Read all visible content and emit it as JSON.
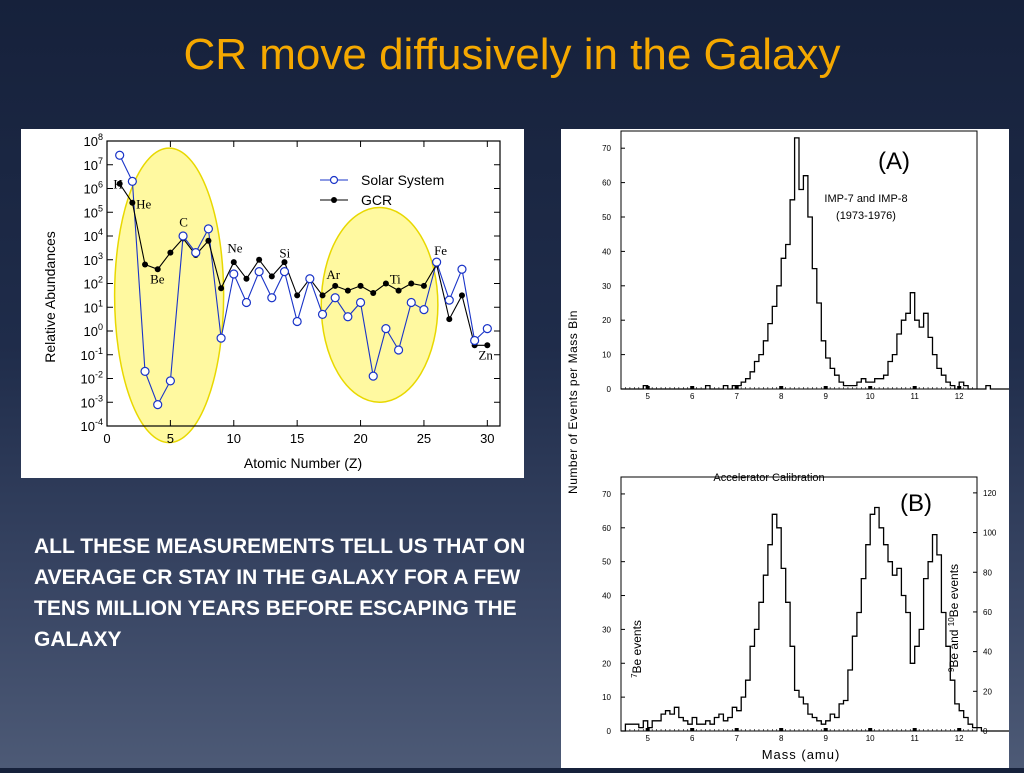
{
  "slide": {
    "title": "CR move diffusively in the Galaxy",
    "body": "ALL THESE MEASUREMENTS TELL US THAT ON AVERAGE CR STAY IN THE GALAXY FOR A FEW TENS MILLION YEARS BEFORE ESCAPING THE GALAXY"
  },
  "colors": {
    "title": "#f5a800",
    "highlight": "#fff9a0",
    "highlight_stroke": "#e8d800",
    "solar": "#1a34c8",
    "gcr": "#000000"
  },
  "chart_data": [
    {
      "type": "line",
      "xlabel": "Atomic Number (Z)",
      "ylabel": "Relative Abundances",
      "xlim": [
        0,
        31
      ],
      "ylim": [
        -4,
        8
      ],
      "yscale": "log",
      "xticks": [
        0,
        5,
        10,
        15,
        20,
        25,
        30
      ],
      "ytick_exponents": [
        8,
        7,
        6,
        5,
        4,
        3,
        2,
        1,
        0,
        -1,
        -2,
        -3,
        -4
      ],
      "legend": [
        "Solar System",
        "GCR"
      ],
      "legend_position": "top-right",
      "series": [
        {
          "name": "Solar System",
          "marker": "open-circle",
          "x": [
            1,
            2,
            3,
            4,
            5,
            6,
            7,
            8,
            9,
            10,
            11,
            12,
            13,
            14,
            15,
            16,
            17,
            18,
            19,
            20,
            21,
            22,
            23,
            24,
            25,
            26,
            27,
            28,
            29,
            30
          ],
          "y_log": [
            7.4,
            6.3,
            -1.7,
            -3.1,
            -2.1,
            4.0,
            3.3,
            4.3,
            -0.3,
            2.4,
            1.2,
            2.5,
            1.4,
            2.5,
            0.4,
            2.2,
            0.7,
            1.4,
            0.6,
            1.2,
            -1.9,
            0.1,
            -0.8,
            1.2,
            0.9,
            2.9,
            1.3,
            2.6,
            -0.4,
            0.1
          ]
        },
        {
          "name": "GCR",
          "marker": "filled-circle",
          "x": [
            1,
            2,
            3,
            4,
            5,
            6,
            7,
            8,
            9,
            10,
            11,
            12,
            13,
            14,
            15,
            16,
            17,
            18,
            19,
            20,
            21,
            22,
            23,
            24,
            25,
            26,
            27,
            28,
            29,
            30
          ],
          "y_log": [
            6.2,
            5.4,
            2.8,
            2.6,
            3.3,
            3.9,
            3.2,
            3.8,
            1.8,
            2.9,
            2.2,
            3.0,
            2.3,
            2.9,
            1.5,
            2.2,
            1.5,
            1.9,
            1.7,
            1.9,
            1.6,
            2.0,
            1.7,
            2.0,
            1.9,
            2.8,
            0.5,
            1.5,
            -0.6,
            -0.6
          ]
        }
      ],
      "annotations": [
        "H",
        "He",
        "Be",
        "C",
        "Ne",
        "Si",
        "Ar",
        "Ti",
        "Fe",
        "Zn"
      ],
      "highlight_regions": [
        "Li-Be-B",
        "Sc-Ti-V-Cr-Mn"
      ]
    },
    {
      "type": "bar",
      "panel_label": "(A)",
      "annotation": [
        "IMP-7 and IMP-8",
        "(1973-1976)"
      ],
      "xlim": [
        4.4,
        12.4
      ],
      "ylim": [
        0,
        75
      ],
      "xticks": [
        5,
        6,
        7,
        8,
        9,
        10,
        11,
        12
      ],
      "yticks": [
        0,
        10,
        20,
        30,
        40,
        50,
        60,
        70
      ],
      "bin_width": 0.1,
      "bin_start": 4.4,
      "values": [
        0,
        0,
        0,
        0,
        0,
        1,
        0,
        0,
        0,
        0,
        0,
        0,
        0,
        0,
        0,
        0,
        0,
        0,
        0,
        1,
        0,
        0,
        0,
        1,
        0,
        1,
        1,
        2,
        3,
        5,
        8,
        10,
        14,
        19,
        24,
        30,
        38,
        42,
        55,
        73,
        58,
        62,
        50,
        35,
        25,
        14,
        9,
        6,
        4,
        2,
        1,
        1,
        1,
        2,
        3,
        2,
        2,
        3,
        3,
        4,
        8,
        10,
        16,
        20,
        22,
        28,
        20,
        18,
        22,
        15,
        10,
        6,
        4,
        2,
        1,
        0,
        2,
        1,
        0,
        0,
        0,
        0,
        1,
        0,
        0,
        0,
        0,
        0,
        0,
        0,
        0,
        0,
        0,
        0,
        0,
        0,
        0,
        0,
        0,
        0
      ]
    },
    {
      "type": "bar",
      "panel_label": "(B)",
      "title": "Accelerator Calibration",
      "xlabel": "Mass (amu)",
      "ylabel": "Number of Events per Mass Bin",
      "ylabel_left": "7Be events",
      "ylabel_right": "9Be and 10Be events",
      "xlim": [
        4.4,
        12.4
      ],
      "ylim": [
        0,
        75
      ],
      "ylim_right": [
        0,
        128
      ],
      "xticks": [
        5,
        6,
        7,
        8,
        9,
        10,
        11,
        12
      ],
      "yticks": [
        0,
        10,
        20,
        30,
        40,
        50,
        60,
        70
      ],
      "yticks_right": [
        0,
        20,
        40,
        60,
        80,
        100,
        120
      ],
      "bin_width": 0.1,
      "bin_start": 4.4,
      "values": [
        0,
        2,
        2,
        2,
        1,
        3,
        1,
        3,
        3,
        5,
        6,
        5,
        7,
        4,
        3,
        2,
        4,
        2,
        2,
        3,
        2,
        4,
        5,
        3,
        4,
        7,
        6,
        10,
        15,
        25,
        30,
        38,
        46,
        55,
        64,
        60,
        48,
        38,
        25,
        12,
        10,
        8,
        5,
        4,
        3,
        2,
        3,
        5,
        4,
        8,
        9,
        18,
        28,
        35,
        45,
        55,
        64,
        66,
        60,
        55,
        50,
        46,
        48,
        40,
        35,
        20,
        25,
        30,
        45,
        50,
        58,
        52,
        35,
        25,
        15,
        8,
        6,
        4,
        2,
        1,
        1,
        0,
        0,
        0,
        0,
        0,
        0,
        0,
        0,
        0
      ]
    }
  ]
}
